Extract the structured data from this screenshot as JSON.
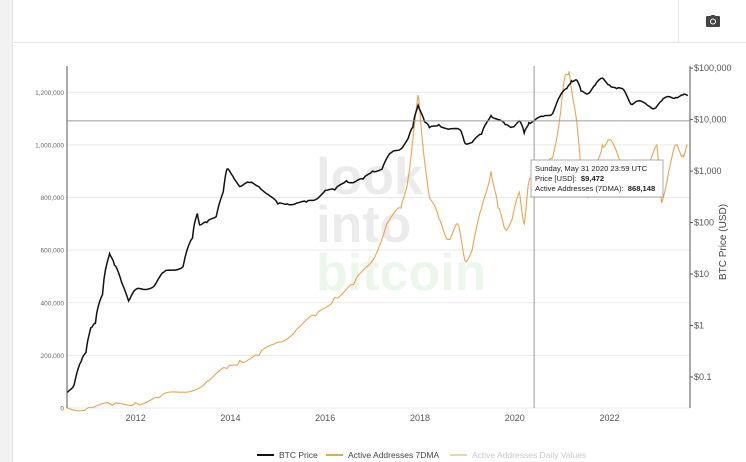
{
  "toolbar": {
    "camera_icon": "camera-icon"
  },
  "watermark": {
    "line1": "look",
    "line2": "into",
    "line3": "bitcoin"
  },
  "tooltip": {
    "date": "Sunday, May 31 2020 23:59 UTC",
    "price_label": "Price [USD]:",
    "price_value": "$9,472",
    "aa_label": "Active Addresses (7DMA):",
    "aa_value": "868,148"
  },
  "chart_data": {
    "type": "line",
    "left_axis": {
      "ticks": [
        "0",
        "200,000",
        "400,000",
        "600,000",
        "800,000",
        "1,000,000",
        "1,200,000"
      ],
      "range": [
        0,
        1300000
      ]
    },
    "right_axis": {
      "label": "BTC Price (USD)",
      "scale": "log",
      "ticks": [
        "$0.1",
        "$1",
        "$10",
        "$100",
        "$1,000",
        "$10,000",
        "$100,000"
      ],
      "range": [
        0.025,
        110000
      ]
    },
    "x_axis": {
      "ticks": [
        "2012",
        "2014",
        "2016",
        "2018",
        "2020",
        "2022"
      ],
      "range": [
        2010.55,
        2023.7
      ]
    },
    "crosshair": {
      "x": 2020.41,
      "y_price": 9472
    },
    "legend": [
      "BTC Price",
      "Active Addresses 7DMA",
      "Active Addresses Daily Values"
    ],
    "colors": {
      "btc": "#111111",
      "aa7": "#e8a550",
      "aa_daily": "#f2d2a6",
      "grid": "#e9e9e9"
    },
    "series": [
      {
        "name": "BTC Price",
        "points": [
          [
            2010.55,
            0.05
          ],
          [
            2010.7,
            0.07
          ],
          [
            2010.85,
            0.2
          ],
          [
            2010.95,
            0.3
          ],
          [
            2011.05,
            0.9
          ],
          [
            2011.15,
            1.1
          ],
          [
            2011.3,
            4
          ],
          [
            2011.45,
            25
          ],
          [
            2011.55,
            15
          ],
          [
            2011.7,
            7
          ],
          [
            2011.85,
            3
          ],
          [
            2012.0,
            5
          ],
          [
            2012.2,
            5
          ],
          [
            2012.4,
            6
          ],
          [
            2012.6,
            11
          ],
          [
            2012.8,
            12
          ],
          [
            2013.0,
            14
          ],
          [
            2013.2,
            50
          ],
          [
            2013.3,
            150
          ],
          [
            2013.35,
            90
          ],
          [
            2013.5,
            100
          ],
          [
            2013.7,
            130
          ],
          [
            2013.85,
            400
          ],
          [
            2013.93,
            1100
          ],
          [
            2014.05,
            800
          ],
          [
            2014.2,
            500
          ],
          [
            2014.4,
            600
          ],
          [
            2014.6,
            500
          ],
          [
            2014.8,
            350
          ],
          [
            2015.0,
            230
          ],
          [
            2015.2,
            230
          ],
          [
            2015.4,
            240
          ],
          [
            2015.6,
            250
          ],
          [
            2015.8,
            280
          ],
          [
            2016.0,
            420
          ],
          [
            2016.2,
            430
          ],
          [
            2016.45,
            650
          ],
          [
            2016.6,
            600
          ],
          [
            2016.8,
            700
          ],
          [
            2017.0,
            1000
          ],
          [
            2017.2,
            1100
          ],
          [
            2017.4,
            2300
          ],
          [
            2017.6,
            2700
          ],
          [
            2017.75,
            4300
          ],
          [
            2017.85,
            7000
          ],
          [
            2017.96,
            19000
          ],
          [
            2018.1,
            9000
          ],
          [
            2018.2,
            7000
          ],
          [
            2018.4,
            8000
          ],
          [
            2018.6,
            6500
          ],
          [
            2018.85,
            6300
          ],
          [
            2018.95,
            3500
          ],
          [
            2019.1,
            3600
          ],
          [
            2019.3,
            5200
          ],
          [
            2019.5,
            12000
          ],
          [
            2019.65,
            10000
          ],
          [
            2019.8,
            8000
          ],
          [
            2019.95,
            7200
          ],
          [
            2020.1,
            9500
          ],
          [
            2020.2,
            5500
          ],
          [
            2020.3,
            8700
          ],
          [
            2020.41,
            9472
          ],
          [
            2020.6,
            11500
          ],
          [
            2020.8,
            13000
          ],
          [
            2020.95,
            28000
          ],
          [
            2021.1,
            40000
          ],
          [
            2021.2,
            57000
          ],
          [
            2021.3,
            59000
          ],
          [
            2021.4,
            36000
          ],
          [
            2021.55,
            32000
          ],
          [
            2021.7,
            47000
          ],
          [
            2021.85,
            64000
          ],
          [
            2022.0,
            47000
          ],
          [
            2022.15,
            40000
          ],
          [
            2022.3,
            38000
          ],
          [
            2022.45,
            20000
          ],
          [
            2022.6,
            23000
          ],
          [
            2022.8,
            19000
          ],
          [
            2022.95,
            16500
          ],
          [
            2023.1,
            23000
          ],
          [
            2023.25,
            28000
          ],
          [
            2023.4,
            27000
          ],
          [
            2023.55,
            30000
          ],
          [
            2023.65,
            29000
          ]
        ]
      },
      {
        "name": "Active Addresses 7DMA",
        "points": [
          [
            2010.55,
            0
          ],
          [
            2011.0,
            2000
          ],
          [
            2011.5,
            10000
          ],
          [
            2012.0,
            20000
          ],
          [
            2012.5,
            40000
          ],
          [
            2013.0,
            60000
          ],
          [
            2013.5,
            100000
          ],
          [
            2013.93,
            150000
          ],
          [
            2014.2,
            180000
          ],
          [
            2014.6,
            200000
          ],
          [
            2015.0,
            250000
          ],
          [
            2015.4,
            300000
          ],
          [
            2015.8,
            350000
          ],
          [
            2016.2,
            420000
          ],
          [
            2016.6,
            470000
          ],
          [
            2017.0,
            560000
          ],
          [
            2017.3,
            700000
          ],
          [
            2017.6,
            760000
          ],
          [
            2017.75,
            870000
          ],
          [
            2017.96,
            1190000
          ],
          [
            2018.05,
            1020000
          ],
          [
            2018.2,
            800000
          ],
          [
            2018.4,
            720000
          ],
          [
            2018.6,
            640000
          ],
          [
            2018.8,
            700000
          ],
          [
            2018.95,
            560000
          ],
          [
            2019.1,
            600000
          ],
          [
            2019.3,
            760000
          ],
          [
            2019.5,
            900000
          ],
          [
            2019.65,
            760000
          ],
          [
            2019.8,
            680000
          ],
          [
            2019.95,
            720000
          ],
          [
            2020.1,
            820000
          ],
          [
            2020.2,
            700000
          ],
          [
            2020.3,
            860000
          ],
          [
            2020.41,
            868148
          ],
          [
            2020.6,
            900000
          ],
          [
            2020.8,
            950000
          ],
          [
            2020.95,
            1100000
          ],
          [
            2021.05,
            1250000
          ],
          [
            2021.15,
            1280000
          ],
          [
            2021.3,
            1100000
          ],
          [
            2021.4,
            900000
          ],
          [
            2021.55,
            800000
          ],
          [
            2021.7,
            900000
          ],
          [
            2021.85,
            1000000
          ],
          [
            2022.0,
            1020000
          ],
          [
            2022.2,
            950000
          ],
          [
            2022.4,
            900000
          ],
          [
            2022.6,
            880000
          ],
          [
            2022.8,
            930000
          ],
          [
            2023.0,
            1000000
          ],
          [
            2023.1,
            780000
          ],
          [
            2023.25,
            900000
          ],
          [
            2023.4,
            1000000
          ],
          [
            2023.55,
            960000
          ],
          [
            2023.65,
            1000000
          ]
        ]
      }
    ]
  }
}
